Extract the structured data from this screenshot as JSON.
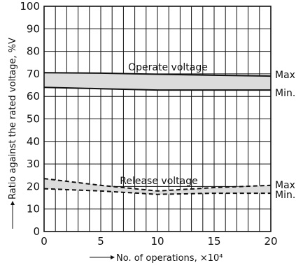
{
  "chart_data": {
    "type": "area",
    "title": "",
    "xlabel": "No. of operations, ×10⁴",
    "ylabel": "Ratio against the rated voltage, %V",
    "xlim": [
      0,
      20
    ],
    "ylim": [
      0,
      100
    ],
    "x_ticks": [
      "0",
      "5",
      "10",
      "15",
      "20"
    ],
    "y_ticks": [
      "0",
      "10",
      "20",
      "30",
      "40",
      "50",
      "60",
      "70",
      "80",
      "90",
      "100"
    ],
    "grid": true,
    "bands": [
      {
        "label": "Operate voltage",
        "line_style": "solid",
        "upper": {
          "label": "Max.",
          "x": [
            0,
            5,
            10,
            15,
            20
          ],
          "y": [
            70.5,
            70.3,
            69.8,
            69.4,
            69.0
          ]
        },
        "lower": {
          "label": "Min.",
          "x": [
            0,
            5,
            10,
            15,
            20
          ],
          "y": [
            64.0,
            63.4,
            62.8,
            62.8,
            62.8
          ]
        }
      },
      {
        "label": "Release voltage",
        "line_style": "dashed",
        "upper": {
          "label": "Max.",
          "x": [
            0,
            5,
            10,
            15,
            20
          ],
          "y": [
            23.5,
            20.5,
            18.0,
            19.5,
            20.5
          ]
        },
        "lower": {
          "label": "Min.",
          "x": [
            0,
            5,
            10,
            15,
            20
          ],
          "y": [
            19.0,
            18.0,
            16.5,
            17.0,
            17.0
          ]
        }
      }
    ]
  }
}
